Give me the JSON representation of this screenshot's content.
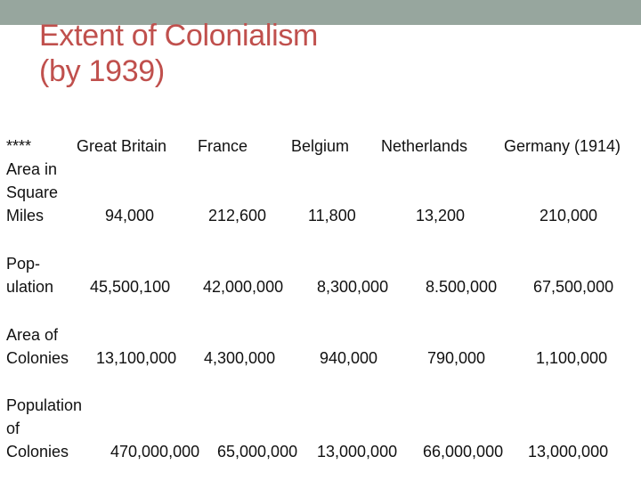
{
  "slide": {
    "title_line1": "Extent of Colonialism",
    "title_line2": "(by 1939)"
  },
  "table": {
    "corner": "****",
    "columns": [
      "Great Britain",
      "France",
      "Belgium",
      "Netherlands",
      "Germany (1914)"
    ],
    "rows": [
      {
        "label_lines": [
          "Area in",
          "Square",
          "Miles"
        ],
        "values": [
          "94,000",
          "212,600",
          "11,800",
          "13,200",
          "210,000"
        ]
      },
      {
        "label_lines": [
          "Pop-",
          "ulation"
        ],
        "values": [
          "45,500,100",
          "42,000,000",
          "8,300,000",
          "8.500,000",
          "67,500,000"
        ]
      },
      {
        "label_lines": [
          "Area of",
          "Colonies"
        ],
        "values": [
          "13,100,000",
          "4,300,000",
          "940,000",
          "790,000",
          "1,100,000"
        ]
      },
      {
        "label_lines": [
          "Population",
          "of",
          "Colonies"
        ],
        "values": [
          "470,000,000",
          "65,000,000",
          "13,000,000",
          "66,000,000",
          "13,000,000"
        ]
      }
    ]
  },
  "colors": {
    "title": "#c0504d",
    "top_band": "#97a69e",
    "text": "#111111"
  }
}
